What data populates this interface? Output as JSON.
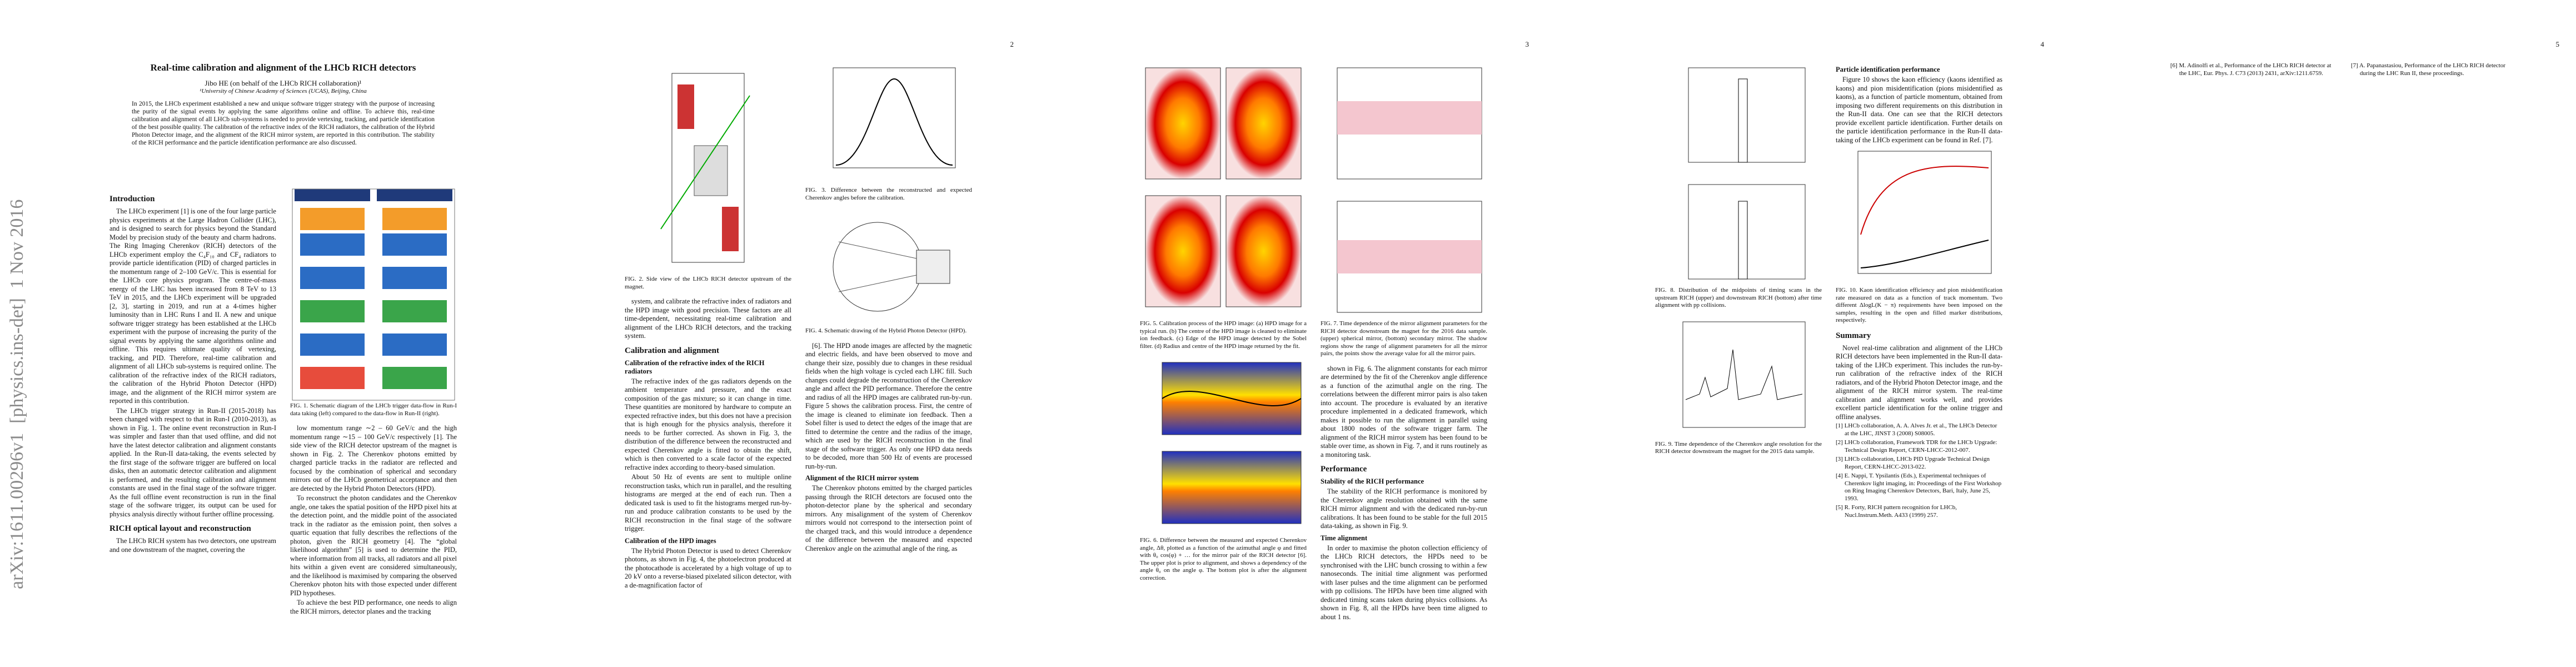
{
  "arxiv_stamp": "arXiv:1611.00296v1  [physics.ins-det]  1 Nov 2016",
  "pages": [
    {
      "header": {
        "title": "Real-time calibration and alignment of the LHCb RICH detectors",
        "author": "Jibo HE (on behalf of the LHCb RICH collaboration)¹",
        "affiliation": "¹University of Chinese Academy of Sciences (UCAS), Beijing, China",
        "abstract": "In 2015, the LHCb experiment established a new and unique software trigger strategy with the purpose of increasing the purity of the signal events by applying the same algorithms online and offline. To achieve this, real-time calibration and alignment of all LHCb sub-systems is needed to provide vertexing, tracking, and particle identification of the best possible quality. The calibration of the refractive index of the RICH radiators, the calibration of the Hybrid Photon Detector image, and the alignment of the RICH mirror system, are reported in this contribution. The stability of the RICH performance and the particle identification performance are also discussed."
      },
      "columns": [
        [
          {
            "heading": "Introduction"
          },
          {
            "text": "The LHCb experiment [1] is one of the four large particle physics experiments at the Large Hadron Collider (LHC), and is designed to search for physics beyond the Standard Model by precision study of the beauty and charm hadrons. The Ring Imaging Cherenkov (RICH) detectors of the LHCb experiment employ the C₄F₁₀ and CF₄ radiators to provide particle identification (PID) of charged particles in the momentum range of 2–100 GeV/c. This is essential for the LHCb core physics program. The centre-of-mass energy of the LHC has been increased from 8 TeV to 13 TeV in 2015, and the LHCb experiment will be upgraded [2, 3], starting in 2019, and run at a 4-times higher luminosity than in LHC Runs I and II. A new and unique software trigger strategy has been established at the LHCb experiment with the purpose of increasing the purity of the signal events by applying the same algorithms online and offline. This requires ultimate quality of vertexing, tracking, and PID. Therefore, real-time calibration and alignment of all LHCb sub-systems is required online. The calibration of the refractive index of the RICH radiators, the calibration of the Hybrid Photon Detector (HPD) image, and the alignment of the RICH mirror system are reported in this contribution."
          },
          {
            "text": "The LHCb trigger strategy in Run-II (2015-2018) has been changed with respect to that in Run-I (2010-2013), as shown in Fig. 1. The online event reconstruction in Run-I was simpler and faster than that used offline, and did not have the latest detector calibration and alignment constants applied. In the Run-II data-taking, the events selected by the first stage of the software trigger are buffered on local disks, then an automatic detector calibration and alignment is performed, and the resulting calibration and alignment constants are used in the final stage of the software trigger. As the full offline event reconstruction is run in the final stage of the software trigger, its output can be used for physics analysis directly without further offline processing."
          },
          {
            "heading": "RICH optical layout and reconstruction"
          },
          {
            "text": "The LHCb RICH system has two detectors, one upstream and one downstream of the magnet, covering the"
          }
        ],
        [
          {
            "caption": "FIG. 1. Schematic diagram of the LHCb trigger data-flow in Run-I data taking (left) compared to the data-flow in Run-II (right)."
          },
          {
            "text": "low momentum range ∼2 – 60 GeV/c and the high momentum range ∼15 – 100 GeV/c respectively [1]. The side view of the RICH detector upstream of the magnet is shown in Fig. 2. The Cherenkov photons emitted by charged particle tracks in the radiator are reflected and focused by the combination of spherical and secondary mirrors out of the LHCb geometrical acceptance and then are detected by the Hybrid Photon Detectors (HPD)."
          },
          {
            "text": "To reconstruct the photon candidates and the Cherenkov angle, one takes the spatial position of the HPD pixel hits at the detection point, and the middle point of the associated track in the radiator as the emission point, then solves a quartic equation that fully describes the reflections of the photon, given the RICH geometry [4]. The “global likelihood algorithm” [5] is used to determine the PID, where information from all tracks, all radiators and all pixel hits within a given event are considered simultaneously, and the likelihood is maximised by comparing the observed Cherenkov photon hits with those expected under different PID hypotheses."
          },
          {
            "text": "To achieve the best PID performance, one needs to align the RICH mirrors, detector planes and the tracking"
          }
        ]
      ]
    },
    {
      "number": "2",
      "columns": [
        [
          {
            "caption": "FIG. 2. Side view of the LHCb RICH detector upstream of the magnet."
          },
          {
            "text": "system, and calibrate the refractive index of radiators and the HPD image with good precision. These factors are all time-dependent, necessitating real-time calibration and alignment of the LHCb RICH detectors, and the tracking system."
          },
          {
            "heading": "Calibration and alignment"
          },
          {
            "subheading": "Calibration of the refractive index of the RICH radiators"
          },
          {
            "text": "The refractive index of the gas radiators depends on the ambient temperature and pressure, and the exact composition of the gas mixture; so it can change in time. These quantities are monitored by hardware to compute an expected refractive index, but this does not have a precision that is high enough for the physics analysis, therefore it needs to be further corrected. As shown in Fig. 3, the distribution of the difference between the reconstructed and expected Cherenkov angle is fitted to obtain the shift, which is then converted to a scale factor of the expected refractive index according to theory-based simulation."
          },
          {
            "text": "About 50 Hz of events are sent to multiple online reconstruction tasks, which run in parallel, and the resulting histograms are merged at the end of each run. Then a dedicated task is used to fit the histograms merged run-by-run and produce calibration constants to be used by the RICH reconstruction in the final stage of the software trigger."
          },
          {
            "subheading": "Calibration of the HPD images"
          },
          {
            "text": "The Hybrid Photon Detector is used to detect Cherenkov photons, as shown in Fig. 4, the photoelectron produced at the photocathode is accelerated by a high voltage of up to 20 kV onto a reverse-biased pixelated silicon detector, with a de-magnification factor of"
          }
        ],
        [
          {
            "caption": "FIG. 3. Difference between the reconstructed and expected Cherenkov angles before the calibration."
          },
          {
            "caption": "FIG. 4. Schematic drawing of the Hybrid Photon Detector (HPD)."
          },
          {
            "text": "[6]. The HPD anode images are affected by the magnetic and electric fields, and have been observed to move and change their size, possibly due to changes in these residual fields when the high voltage is cycled each LHC fill. Such changes could degrade the reconstruction of the Cherenkov angle and affect the PID performance. Therefore the centre and radius of all the HPD images are calibrated run-by-run. Figure 5 shows the calibration process. First, the centre of the image is cleaned to eliminate ion feedback. Then a Sobel filter is used to detect the edges of the image that are fitted to determine the centre and the radius of the image, which are used by the RICH reconstruction in the final stage of the software trigger. As only one HPD data needs to be decoded, more than 500 Hz of events are processed run-by-run."
          },
          {
            "subheading": "Alignment of the RICH mirror system"
          },
          {
            "text": "The Cherenkov photons emitted by the charged particles passing through the RICH detectors are focused onto the photon-detector plane by the spherical and secondary mirrors. Any misalignment of the system of Cherenkov mirrors would not correspond to the intersection point of the charged track, and this would introduce a dependence of the difference between the measured and expected Cherenkov angle on the azimuthal angle of the ring, as"
          }
        ]
      ]
    },
    {
      "number": "3",
      "columns": [
        [
          {
            "caption": "FIG. 5. Calibration process of the HPD image: (a) HPD image for a typical run. (b) The centre of the HPD image is cleaned to eliminate ion feedback. (c) Edge of the HPD image detected by the Sobel filter. (d) Radius and centre of the HPD image returned by the fit."
          },
          {
            "caption": "FIG. 6. Difference between the measured and expected Cherenkov angle, Δθ, plotted as a function of the azimuthal angle φ and fitted with θ₀ cos(φ) + … for the mirror pair of the RICH detector [6]. The upper plot is prior to alignment, and shows a dependency of the angle θ₀ on the angle φ. The bottom plot is after the alignment correction."
          }
        ],
        [
          {
            "caption": "FIG. 7. Time dependence of the mirror alignment parameters for the RICH detector downstream the magnet for the 2016 data sample. (upper) spherical mirror, (bottom) secondary mirror. The shadow regions show the range of alignment parameters for all the mirror pairs, the points show the average value for all the mirror pairs."
          },
          {
            "text": "shown in Fig. 6. The alignment constants for each mirror are determined by the fit of the Cherenkov angle difference as a function of the azimuthal angle on the ring. The correlations between the different mirror pairs is also taken into account. The procedure is evaluated by an iterative procedure implemented in a dedicated framework, which makes it possible to run the alignment in parallel using about 1800 nodes of the software trigger farm. The alignment of the RICH mirror system has been found to be stable over time, as shown in Fig. 7, and it runs routinely as a monitoring task."
          },
          {
            "heading": "Performance"
          },
          {
            "subheading": "Stability of the RICH performance"
          },
          {
            "text": "The stability of the RICH performance is monitored by the Cherenkov angle resolution obtained with the same RICH mirror alignment and with the dedicated run-by-run calibrations. It has been found to be stable for the full 2015 data-taking, as shown in Fig. 9."
          },
          {
            "subheading": "Time alignment"
          },
          {
            "text": "In order to maximise the photon collection efficiency of the LHCb RICH detectors, the HPDs need to be synchronised with the LHC bunch crossing to within a few nanoseconds. The initial time alignment was performed with laser pulses and the time alignment can be performed with pp collisions. The HPDs have been time aligned with dedicated timing scans taken during physics collisions. As shown in Fig. 8, all the HPDs have been time aligned to about 1 ns."
          }
        ]
      ]
    },
    {
      "number": "4",
      "columns": [
        [
          {
            "caption": "FIG. 8. Distribution of the midpoints of timing scans in the upstream RICH (upper) and downstream RICH (bottom) after time alignment with pp collisions."
          },
          {
            "caption": "FIG. 9. Time dependence of the Cherenkov angle resolution for the RICH detector downstream the magnet for the 2015 data sample."
          }
        ],
        [
          {
            "subheading": "Particle identification performance"
          },
          {
            "text": "Figure 10 shows the kaon efficiency (kaons identified as kaons) and pion misidentification (pions misidentified as kaons), as a function of particle momentum, obtained from imposing two different requirements on this distribution in the Run-II data. One can see that the RICH detectors provide excellent particle identification. Further details on the particle identification performance in the Run-II data-taking of the LHCb experiment can be found in Ref. [7]."
          },
          {
            "caption": "FIG. 10. Kaon identification efficiency and pion misidentification rate measured on data as a function of track momentum. Two different ΔlogL(K − π) requirements have been imposed on the samples, resulting in the open and filled marker distributions, respectively."
          },
          {
            "heading": "Summary"
          },
          {
            "text": "Novel real-time calibration and alignment of the LHCb RICH detectors have been implemented in the Run-II data-taking of the LHCb experiment. This includes the run-by-run calibration of the refractive index of the RICH radiators, and of the Hybrid Photon Detector image, and the alignment of the RICH mirror system. The real-time calibration and alignment works well, and provides excellent particle identification for the online trigger and offline analyses."
          },
          {
            "reference": "[1] LHCb collaboration, A. A. Alves Jr. et al., The LHCb Detector at the LHC, JINST 3 (2008) S08005."
          },
          {
            "reference": "[2] LHCb collaboration, Framework TDR for the LHCb Upgrade: Technical Design Report, CERN-LHCC-2012-007."
          },
          {
            "reference": "[3] LHCb collaboration, LHCb PID Upgrade Technical Design Report, CERN-LHCC-2013-022."
          },
          {
            "reference": "[4] E. Nappi, T. Ypsilantis (Eds.), Experimental techniques of Cherenkov light imaging, in: Proceedings of the First Workshop on Ring Imaging Cherenkov Detectors, Bari, Italy, June 25, 1993."
          },
          {
            "reference": "[5] R. Forty, RICH pattern recognition for LHCb, Nucl.Instrum.Meth. A433 (1999) 257."
          }
        ]
      ]
    },
    {
      "number": "5",
      "columns": [
        [
          {
            "reference": "[6] M. Adinolfi et al., Performance of the LHCb RICH detector at the LHC, Eur. Phys. J. C73 (2013) 2431, arXiv:1211.6759."
          }
        ],
        [
          {
            "reference": "[7] A. Papanastasiou, Performance of the LHCb RICH detector during the LHC Run II, these proceedings."
          }
        ]
      ]
    }
  ]
}
